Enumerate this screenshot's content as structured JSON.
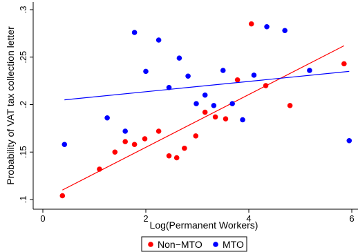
{
  "chart_data": {
    "type": "scatter",
    "title": "",
    "xlabel": "Log(Permanent Workers)",
    "ylabel": "Probability of VAT tax collection letter",
    "xlim": [
      0,
      6
    ],
    "ylim": [
      0.1,
      0.3
    ],
    "x_ticks": [
      "0",
      "2",
      "4",
      "6"
    ],
    "y_ticks": [
      ".1",
      ".15",
      ".2",
      ".25",
      ".3"
    ],
    "grid": false,
    "legend_position": "bottom",
    "series": [
      {
        "name": "Non−MTO",
        "color": "#ff0000",
        "points": [
          [
            0.38,
            0.104
          ],
          [
            1.1,
            0.132
          ],
          [
            1.4,
            0.15
          ],
          [
            1.6,
            0.161
          ],
          [
            1.78,
            0.158
          ],
          [
            1.98,
            0.164
          ],
          [
            2.25,
            0.172
          ],
          [
            2.45,
            0.146
          ],
          [
            2.6,
            0.144
          ],
          [
            2.75,
            0.154
          ],
          [
            2.97,
            0.167
          ],
          [
            3.15,
            0.192
          ],
          [
            3.35,
            0.187
          ],
          [
            3.55,
            0.185
          ],
          [
            3.78,
            0.226
          ],
          [
            4.05,
            0.285
          ],
          [
            4.33,
            0.22
          ],
          [
            4.8,
            0.199
          ],
          [
            5.85,
            0.243
          ]
        ],
        "fit": [
          [
            0.38,
            0.11
          ],
          [
            5.85,
            0.262
          ]
        ]
      },
      {
        "name": "MTO",
        "color": "#0000ff",
        "points": [
          [
            0.42,
            0.158
          ],
          [
            1.25,
            0.186
          ],
          [
            1.6,
            0.172
          ],
          [
            1.78,
            0.276
          ],
          [
            2.0,
            0.235
          ],
          [
            2.25,
            0.268
          ],
          [
            2.45,
            0.218
          ],
          [
            2.65,
            0.249
          ],
          [
            2.82,
            0.23
          ],
          [
            2.98,
            0.201
          ],
          [
            3.15,
            0.21
          ],
          [
            3.32,
            0.199
          ],
          [
            3.5,
            0.236
          ],
          [
            3.68,
            0.201
          ],
          [
            3.88,
            0.184
          ],
          [
            4.1,
            0.231
          ],
          [
            4.35,
            0.282
          ],
          [
            4.7,
            0.278
          ],
          [
            5.18,
            0.236
          ],
          [
            5.95,
            0.162
          ]
        ],
        "fit": [
          [
            0.42,
            0.205
          ],
          [
            5.95,
            0.235
          ]
        ]
      }
    ]
  }
}
